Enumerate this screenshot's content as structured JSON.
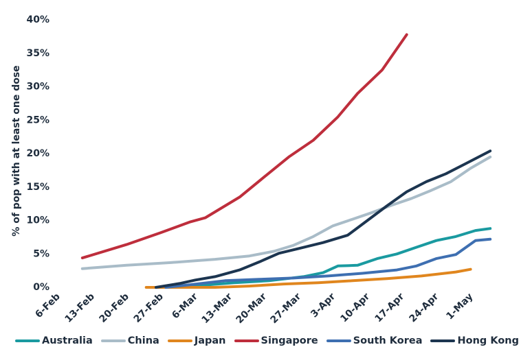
{
  "chart_data": {
    "type": "line",
    "title": "",
    "xlabel": "",
    "ylabel": "% of pop with at least one dose",
    "xlim": [
      "2021-02-06",
      "2021-05-06"
    ],
    "ylim": [
      0,
      40
    ],
    "x_tick_labels": [
      "6-Feb",
      "13-Feb",
      "20-Feb",
      "27-Feb",
      "6-Mar",
      "13-Mar",
      "20-Mar",
      "27-Mar",
      "3-Apr",
      "10-Apr",
      "17-Apr",
      "24-Apr",
      "1-May"
    ],
    "x_tick_dates": [
      "2021-02-06",
      "2021-02-13",
      "2021-02-20",
      "2021-02-27",
      "2021-03-06",
      "2021-03-13",
      "2021-03-20",
      "2021-03-27",
      "2021-04-03",
      "2021-04-10",
      "2021-04-17",
      "2021-04-24",
      "2021-05-01"
    ],
    "y_ticks": [
      0,
      5,
      10,
      15,
      20,
      25,
      30,
      35,
      40
    ],
    "y_tick_labels": [
      "0%",
      "5%",
      "10%",
      "15%",
      "20%",
      "25%",
      "30%",
      "35%",
      "40%"
    ],
    "legend_position": "bottom",
    "grid": false,
    "series": [
      {
        "name": "Australia",
        "color": "#1a9aa0",
        "points": [
          [
            "2021-02-28",
            0
          ],
          [
            "2021-03-07",
            0.3
          ],
          [
            "2021-03-14",
            0.7
          ],
          [
            "2021-03-21",
            1.0
          ],
          [
            "2021-03-28",
            1.6
          ],
          [
            "2021-04-01",
            2.2
          ],
          [
            "2021-04-04",
            3.2
          ],
          [
            "2021-04-08",
            3.3
          ],
          [
            "2021-04-12",
            4.3
          ],
          [
            "2021-04-16",
            5.0
          ],
          [
            "2021-04-20",
            6.0
          ],
          [
            "2021-04-24",
            7.0
          ],
          [
            "2021-04-28",
            7.6
          ],
          [
            "2021-05-02",
            8.5
          ],
          [
            "2021-05-05",
            8.8
          ]
        ]
      },
      {
        "name": "China",
        "color": "#a9bcc8",
        "points": [
          [
            "2021-02-11",
            2.8
          ],
          [
            "2021-02-20",
            3.3
          ],
          [
            "2021-03-01",
            3.7
          ],
          [
            "2021-03-10",
            4.2
          ],
          [
            "2021-03-17",
            4.7
          ],
          [
            "2021-03-22",
            5.4
          ],
          [
            "2021-03-26",
            6.3
          ],
          [
            "2021-03-30",
            7.6
          ],
          [
            "2021-04-03",
            9.2
          ],
          [
            "2021-04-07",
            10.2
          ],
          [
            "2021-04-11",
            11.2
          ],
          [
            "2021-04-15",
            12.3
          ],
          [
            "2021-04-19",
            13.3
          ],
          [
            "2021-04-23",
            14.5
          ],
          [
            "2021-04-27",
            15.8
          ],
          [
            "2021-05-01",
            17.8
          ],
          [
            "2021-05-05",
            19.5
          ]
        ]
      },
      {
        "name": "Japan",
        "color": "#e0861e",
        "points": [
          [
            "2021-02-24",
            0
          ],
          [
            "2021-03-10",
            0
          ],
          [
            "2021-03-17",
            0.2
          ],
          [
            "2021-03-24",
            0.5
          ],
          [
            "2021-03-31",
            0.7
          ],
          [
            "2021-04-07",
            1.0
          ],
          [
            "2021-04-14",
            1.3
          ],
          [
            "2021-04-21",
            1.7
          ],
          [
            "2021-04-28",
            2.3
          ],
          [
            "2021-05-01",
            2.7
          ]
        ]
      },
      {
        "name": "Singapore",
        "color": "#be2e3c",
        "points": [
          [
            "2021-02-11",
            4.4
          ],
          [
            "2021-02-20",
            6.4
          ],
          [
            "2021-02-27",
            8.2
          ],
          [
            "2021-03-05",
            9.8
          ],
          [
            "2021-03-08",
            10.4
          ],
          [
            "2021-03-15",
            13.5
          ],
          [
            "2021-03-20",
            16.5
          ],
          [
            "2021-03-25",
            19.5
          ],
          [
            "2021-03-30",
            22.0
          ],
          [
            "2021-04-04",
            25.5
          ],
          [
            "2021-04-08",
            29.0
          ],
          [
            "2021-04-13",
            32.5
          ],
          [
            "2021-04-18",
            37.8
          ]
        ]
      },
      {
        "name": "South Korea",
        "color": "#3e6fb1",
        "points": [
          [
            "2021-02-28",
            0
          ],
          [
            "2021-03-05",
            0.4
          ],
          [
            "2021-03-12",
            1.0
          ],
          [
            "2021-03-19",
            1.2
          ],
          [
            "2021-03-26",
            1.4
          ],
          [
            "2021-04-02",
            1.7
          ],
          [
            "2021-04-09",
            2.1
          ],
          [
            "2021-04-16",
            2.6
          ],
          [
            "2021-04-20",
            3.2
          ],
          [
            "2021-04-24",
            4.3
          ],
          [
            "2021-04-28",
            4.9
          ],
          [
            "2021-05-02",
            7.0
          ],
          [
            "2021-05-05",
            7.2
          ]
        ]
      },
      {
        "name": "Hong Kong",
        "color": "#1c3550",
        "points": [
          [
            "2021-02-26",
            0
          ],
          [
            "2021-03-03",
            0.6
          ],
          [
            "2021-03-06",
            1.1
          ],
          [
            "2021-03-10",
            1.6
          ],
          [
            "2021-03-15",
            2.6
          ],
          [
            "2021-03-19",
            3.8
          ],
          [
            "2021-03-23",
            5.1
          ],
          [
            "2021-03-27",
            5.8
          ],
          [
            "2021-04-01",
            6.7
          ],
          [
            "2021-04-06",
            7.8
          ],
          [
            "2021-04-10",
            10.0
          ],
          [
            "2021-04-14",
            12.2
          ],
          [
            "2021-04-18",
            14.3
          ],
          [
            "2021-04-22",
            15.8
          ],
          [
            "2021-04-26",
            17.0
          ],
          [
            "2021-04-30",
            18.5
          ],
          [
            "2021-05-05",
            20.4
          ]
        ]
      }
    ]
  }
}
